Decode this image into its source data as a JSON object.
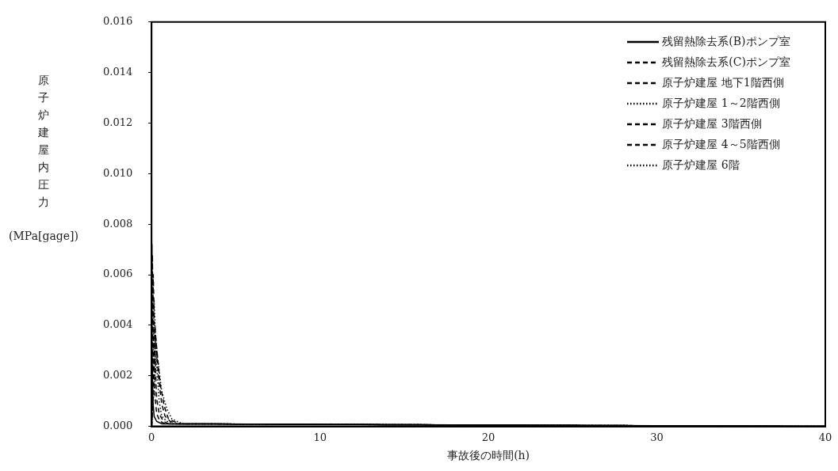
{
  "chart_data": {
    "type": "line",
    "xlabel": "事故後の時間(h)",
    "ylabel": "原子炉建屋内圧力 (MPa[gage])",
    "x": [
      0,
      0.01,
      0.03,
      0.08,
      0.15,
      0.3,
      0.6,
      1,
      40
    ],
    "xlim": [
      0,
      40
    ],
    "xticks": [
      0,
      10,
      20,
      30,
      40
    ],
    "ylim": [
      0,
      0.016
    ],
    "yticks": [
      {
        "value": 0,
        "label": "0.000"
      },
      {
        "value": 0.002,
        "label": "0.002"
      },
      {
        "value": 0.004,
        "label": "0.004"
      },
      {
        "value": 0.006,
        "label": "0.006"
      },
      {
        "value": 0.008,
        "label": "0.008"
      },
      {
        "value": 0.01,
        "label": "0.010"
      },
      {
        "value": 0.012,
        "label": "0.012"
      },
      {
        "value": 0.014,
        "label": "0.014"
      },
      {
        "value": 0.016,
        "label": "0.016"
      }
    ],
    "grid": false,
    "legend": "top right",
    "marker": "none",
    "series": [
      {
        "name": "残留熱除去系(B)ポンプ室",
        "color": "#000000",
        "line_style": "solid",
        "values": [
          0,
          0.0072,
          0.003,
          0.001,
          0.0004,
          0.0002,
          0.0001,
          0.0001,
          0
        ]
      },
      {
        "name": "残留熱除去系(C)ポンプ室",
        "color": "#000000",
        "line_style": "dashed",
        "x": [
          0,
          0.05,
          0.1,
          0.2,
          0.3,
          0.5,
          0.8,
          1.2,
          40
        ],
        "values": [
          0,
          0.0068,
          0.0032,
          0.0012,
          0.0005,
          0.0002,
          0.0001,
          0.0001,
          0
        ]
      },
      {
        "name": "原子炉建屋 地下1階西側",
        "color": "#000000",
        "line_style": "dashed",
        "x": [
          0,
          0.1,
          0.2,
          0.3,
          0.45,
          0.7,
          1,
          1.5,
          40
        ],
        "values": [
          0,
          0.006,
          0.0028,
          0.0011,
          0.0005,
          0.0002,
          0.0001,
          0.0001,
          0
        ]
      },
      {
        "name": "原子炉建屋 1～2階西側",
        "color": "#000000",
        "line_style": "dotted",
        "x": [
          0,
          0.15,
          0.3,
          0.45,
          0.6,
          0.9,
          1.3,
          1.8,
          40
        ],
        "values": [
          0,
          0.005,
          0.0024,
          0.001,
          0.0004,
          0.0002,
          0.0001,
          0.0001,
          0
        ]
      },
      {
        "name": "原子炉建屋 3階西側",
        "color": "#000000",
        "line_style": "dashed",
        "x": [
          0,
          0.2,
          0.4,
          0.6,
          0.8,
          1.1,
          1.5,
          2,
          40
        ],
        "values": [
          0,
          0.004,
          0.002,
          0.0009,
          0.0004,
          0.0002,
          0.0001,
          0.0001,
          0
        ]
      },
      {
        "name": "原子炉建屋 4～5階西側",
        "color": "#000000",
        "line_style": "dashed",
        "x": [
          0,
          0.25,
          0.5,
          0.75,
          1,
          1.3,
          1.7,
          2.2,
          40
        ],
        "values": [
          0,
          0.0035,
          0.0017,
          0.0008,
          0.0003,
          0.0002,
          0.0001,
          0.0001,
          0
        ]
      },
      {
        "name": "原子炉建屋 6階",
        "color": "#000000",
        "line_style": "dotted",
        "x": [
          0,
          0.3,
          0.6,
          0.9,
          1.2,
          1.5,
          1.9,
          2.4,
          40
        ],
        "values": [
          0,
          0.003,
          0.0014,
          0.0007,
          0.0003,
          0.0002,
          0.0001,
          0.0001,
          0
        ]
      }
    ]
  }
}
